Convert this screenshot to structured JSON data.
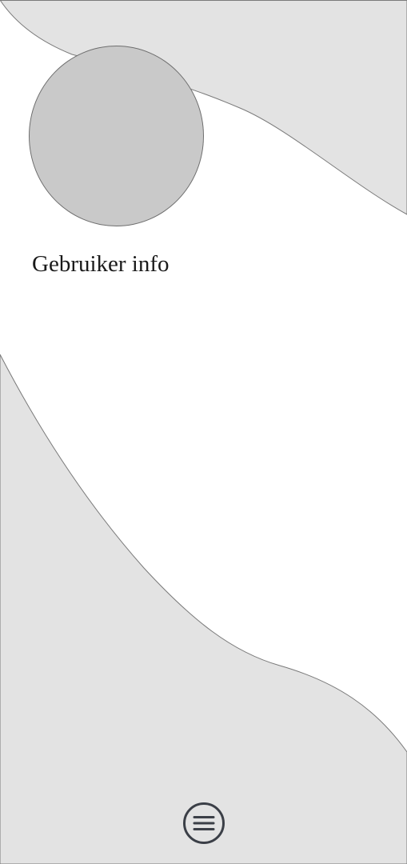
{
  "profile": {
    "avatar_icon": "avatar-placeholder-circle",
    "section_title": "Gebruiker info"
  },
  "navigation": {
    "menu_icon": "hamburger-menu-icon"
  },
  "colors": {
    "background": "#ffffff",
    "wave_fill": "#e3e3e3",
    "wave_stroke": "#7a7a7a",
    "avatar_fill": "#c9c9c9",
    "icon_stroke": "#3b3f47"
  }
}
